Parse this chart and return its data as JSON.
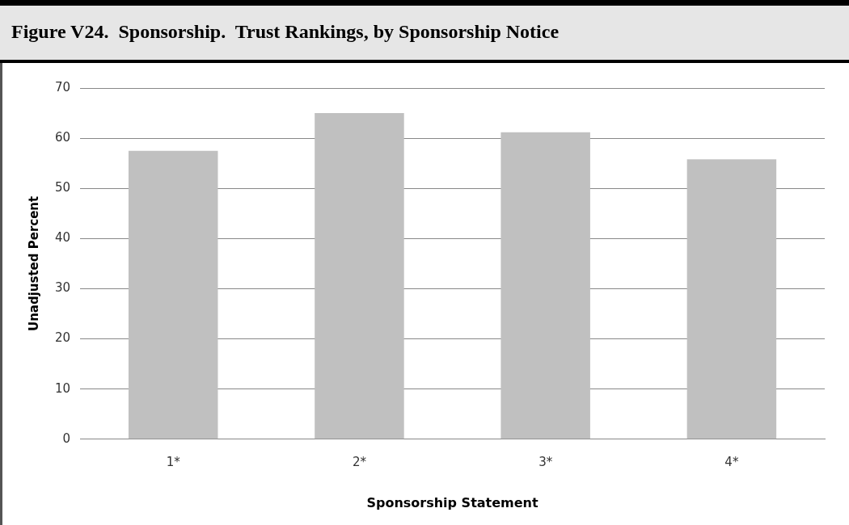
{
  "chart_data": {
    "type": "bar",
    "title": "Figure V24.  Sponsorship.  Trust Rankings, by Sponsorship Notice",
    "xlabel": "Sponsorship Statement",
    "ylabel": "Unadjusted Percent",
    "categories": [
      "1*",
      "2*",
      "3*",
      "4*"
    ],
    "values": [
      57.5,
      65,
      61.2,
      55.8
    ],
    "color": "#c0c0c0",
    "ylim": [
      0,
      70
    ],
    "yticks": [
      0,
      10,
      20,
      30,
      40,
      50,
      60,
      70
    ],
    "grid": "y",
    "legend": false
  }
}
